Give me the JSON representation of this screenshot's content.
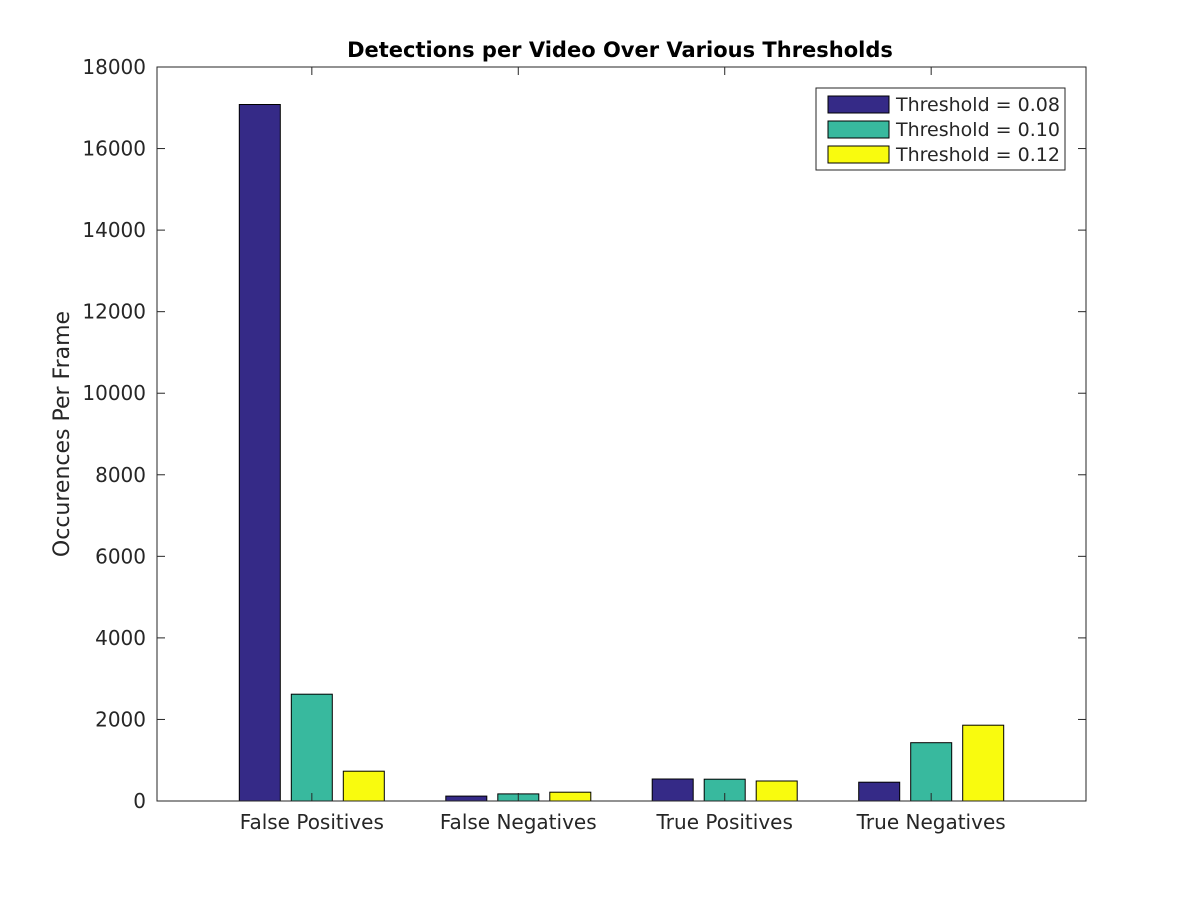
{
  "chart_data": {
    "type": "bar",
    "title": "Detections per Video Over Various Thresholds",
    "xlabel": "",
    "ylabel": "Occurences Per Frame",
    "categories": [
      "False Positives",
      "False Negatives",
      "True Positives",
      "True Negatives"
    ],
    "series": [
      {
        "name": "Threshold = 0.08",
        "values": [
          17080,
          120,
          540,
          460
        ],
        "color": "#352a87"
      },
      {
        "name": "Threshold = 0.10",
        "values": [
          2620,
          175,
          535,
          1430
        ],
        "color": "#38b99e"
      },
      {
        "name": "Threshold = 0.12",
        "values": [
          730,
          215,
          490,
          1860
        ],
        "color": "#f9fb0e"
      }
    ],
    "ylim": [
      0,
      18000
    ],
    "yticks": [
      0,
      2000,
      4000,
      6000,
      8000,
      10000,
      12000,
      14000,
      16000,
      18000
    ],
    "grid": false,
    "legend_position": "top-right"
  }
}
